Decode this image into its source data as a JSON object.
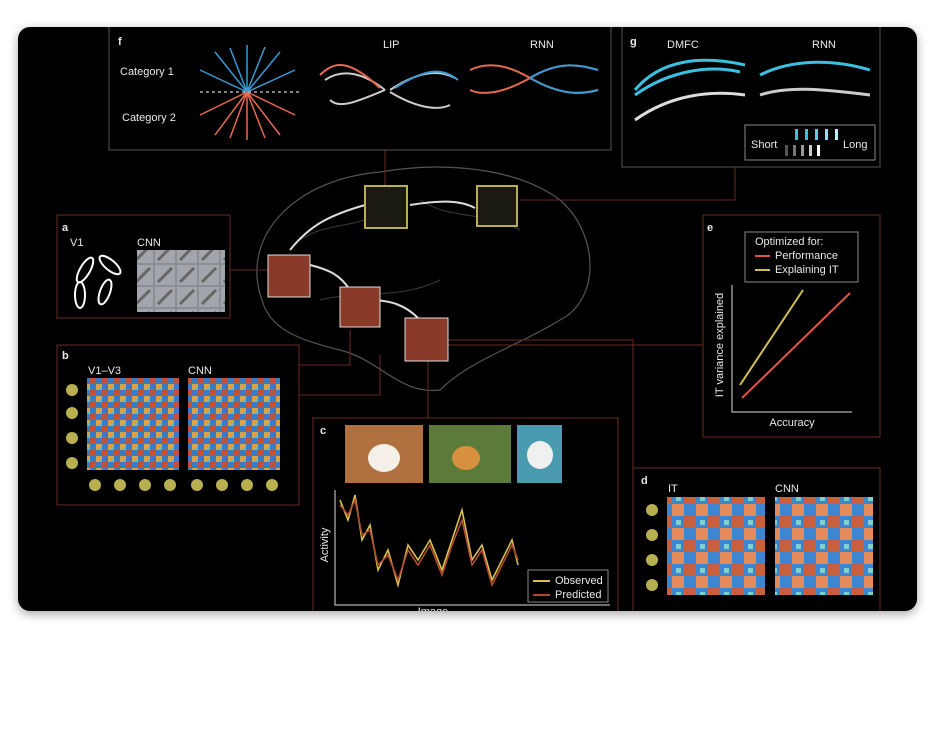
{
  "panels": {
    "f": {
      "label": "f",
      "category_1": "Category 1",
      "category_2": "Category 2",
      "lip": "LIP",
      "rnn": "RNN"
    },
    "g": {
      "label": "g",
      "dmfc": "DMFC",
      "rnn": "RNN",
      "short": "Short",
      "long": "Long"
    },
    "a": {
      "label": "a",
      "v1": "V1",
      "cnn": "CNN"
    },
    "e": {
      "label": "e",
      "legend_title": "Optimized for:",
      "performance": "Performance",
      "explaining_it": "Explaining IT",
      "y_label": "IT variance explained",
      "x_label": "Accuracy"
    },
    "b": {
      "label": "b",
      "v1_v3": "V1–V3",
      "cnn": "CNN"
    },
    "c": {
      "label": "c",
      "y_label": "Activity",
      "observed": "Observed",
      "predicted": "Predicted",
      "x_label": "Image"
    },
    "d": {
      "label": "d",
      "it": "IT",
      "cnn": "CNN"
    }
  }
}
